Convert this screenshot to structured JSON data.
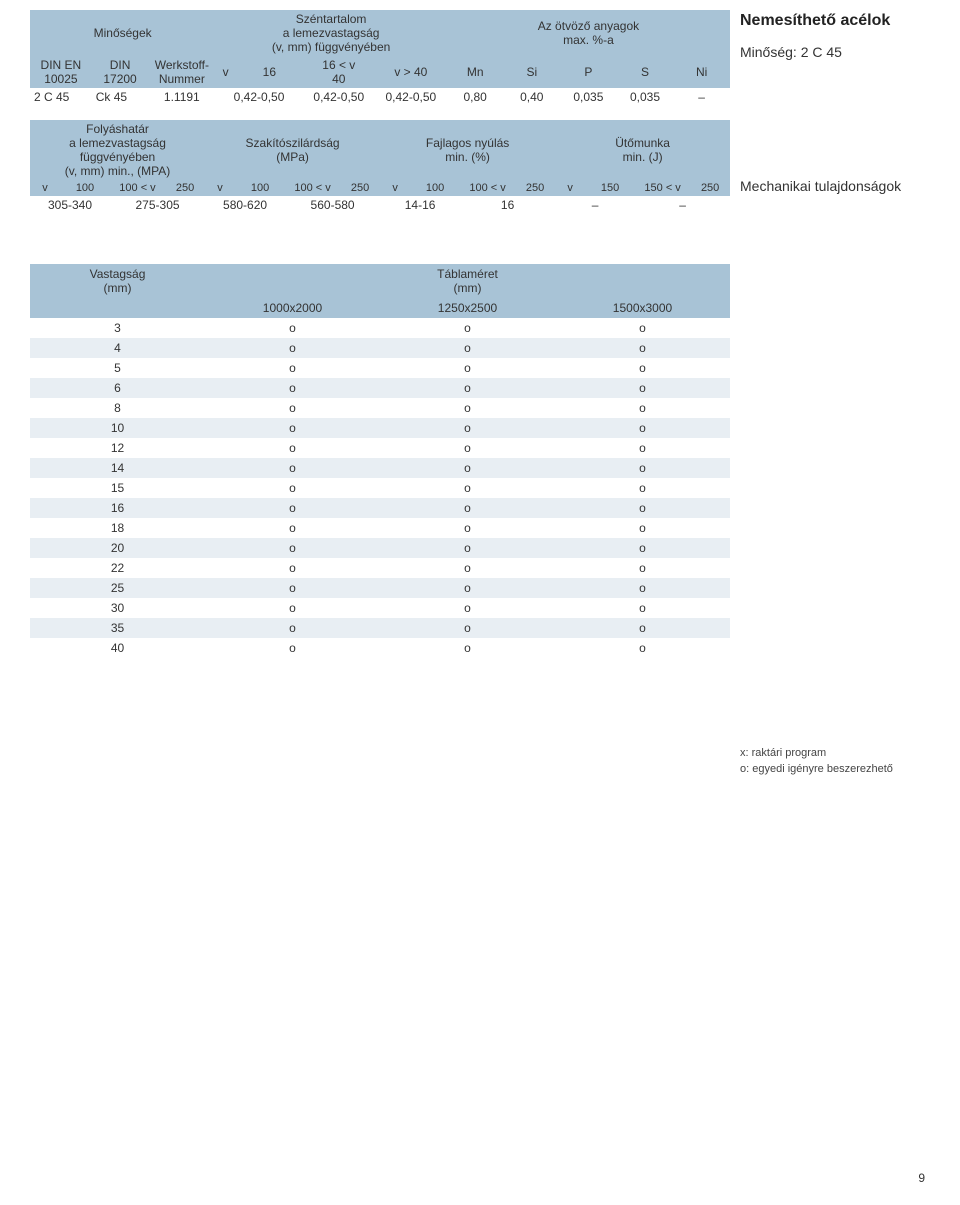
{
  "colors": {
    "header_bg": "#a8c3d6",
    "zebra_bg": "#e8eef3",
    "page_bg": "#ffffff",
    "text": "#333333"
  },
  "right": {
    "title": "Nemesíthető acélok",
    "subtitle": "Minőség: 2 C 45",
    "section2": "Mechanikai tulajdonságok"
  },
  "legend": {
    "x": "x: raktári program",
    "o": "o: egyedi igényre beszerezhető"
  },
  "page_number": "9",
  "table1": {
    "hdr": {
      "minoseg": "Minőségek",
      "carbon_l1": "Széntartalom",
      "carbon_l2": "a lemezvastagság",
      "carbon_l3": "(v, mm) függvényében",
      "alloy_l1": "Az ötvöző anyagok",
      "alloy_l2": "max. %-a",
      "din_en": "DIN EN",
      "c10025": "10025",
      "din": "DIN",
      "c17200": "17200",
      "werk_l1": "Werkstoff-",
      "werk_l2": "Nummer",
      "v": "v",
      "c16": "16",
      "c16v_l1": "16 < v",
      "c16v_l2": "40",
      "vgt40": "v > 40",
      "mn": "Mn",
      "si": "Si",
      "p": "P",
      "s": "S",
      "ni": "Ni"
    },
    "row": {
      "din_en": "2 C 45",
      "din": "Ck 45",
      "werk": "1.1191",
      "v16": "0,42-0,50",
      "v16_40": "0,42-0,50",
      "vgt40": "0,42-0,50",
      "mn": "0,80",
      "si": "0,40",
      "p": "0,035",
      "s": "0,035",
      "ni": "–"
    }
  },
  "table2": {
    "hdr": {
      "yield_l1": "Folyáshatár",
      "yield_l2": "a lemezvastagság",
      "yield_l3": "függvényében",
      "yield_l4": "(v, mm) min., (MPA)",
      "tensile_l1": "Szakítószilárdság",
      "tensile_l2": "(MPa)",
      "elong_l1": "Fajlagos nyúlás",
      "elong_l2": "min. (%)",
      "impact_l1": "Ütőmunka",
      "impact_l2": "min. (J)",
      "v": "v",
      "c100": "100",
      "c100v": "100 < v",
      "c250": "250",
      "c150": "150",
      "c150v": "150 < v"
    },
    "row": {
      "y1": "305-340",
      "y2": "275-305",
      "t1": "580-620",
      "t2": "560-580",
      "e1": "14-16",
      "e2": "16",
      "i1": "–",
      "i2": "–"
    }
  },
  "table3": {
    "hdr": {
      "thick_l1": "Vastagság",
      "thick_l2": "(mm)",
      "sheet_l1": "Táblaméret",
      "sheet_l2": "(mm)",
      "c1": "1000x2000",
      "c2": "1250x2500",
      "c3": "1500x3000"
    },
    "rows": [
      {
        "t": "3",
        "a": "o",
        "b": "o",
        "c": "o"
      },
      {
        "t": "4",
        "a": "o",
        "b": "o",
        "c": "o"
      },
      {
        "t": "5",
        "a": "o",
        "b": "o",
        "c": "o"
      },
      {
        "t": "6",
        "a": "o",
        "b": "o",
        "c": "o"
      },
      {
        "t": "8",
        "a": "o",
        "b": "o",
        "c": "o"
      },
      {
        "t": "10",
        "a": "o",
        "b": "o",
        "c": "o"
      },
      {
        "t": "12",
        "a": "o",
        "b": "o",
        "c": "o"
      },
      {
        "t": "14",
        "a": "o",
        "b": "o",
        "c": "o"
      },
      {
        "t": "15",
        "a": "o",
        "b": "o",
        "c": "o"
      },
      {
        "t": "16",
        "a": "o",
        "b": "o",
        "c": "o"
      },
      {
        "t": "18",
        "a": "o",
        "b": "o",
        "c": "o"
      },
      {
        "t": "20",
        "a": "o",
        "b": "o",
        "c": "o"
      },
      {
        "t": "22",
        "a": "o",
        "b": "o",
        "c": "o"
      },
      {
        "t": "25",
        "a": "o",
        "b": "o",
        "c": "o"
      },
      {
        "t": "30",
        "a": "o",
        "b": "o",
        "c": "o"
      },
      {
        "t": "35",
        "a": "o",
        "b": "o",
        "c": "o"
      },
      {
        "t": "40",
        "a": "o",
        "b": "o",
        "c": "o"
      }
    ]
  }
}
